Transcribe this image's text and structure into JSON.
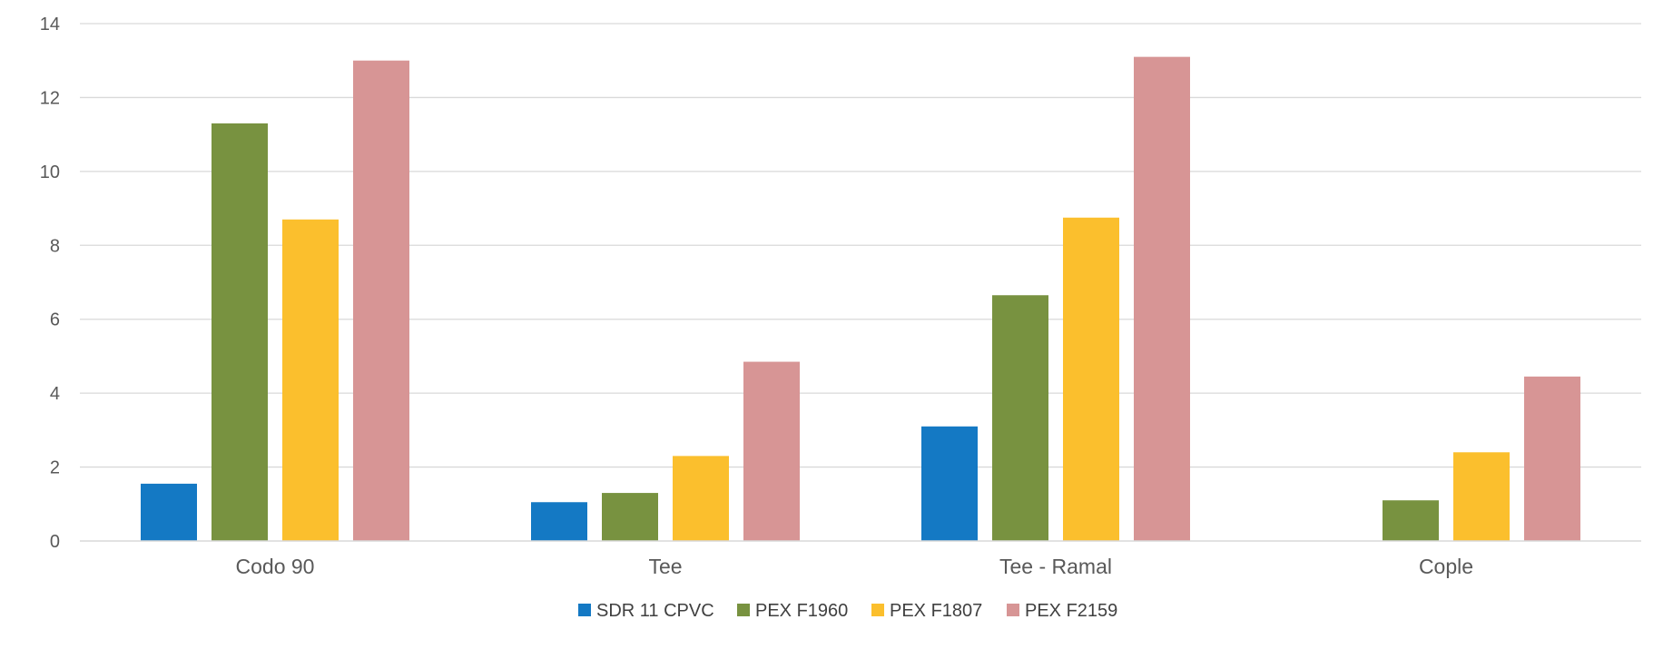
{
  "chart_data": {
    "type": "bar",
    "categories": [
      "Codo 90",
      "Tee",
      "Tee - Ramal",
      "Cople"
    ],
    "series": [
      {
        "name": "SDR 11 CPVC",
        "color": "#1479C4",
        "values": [
          1.55,
          1.05,
          3.1,
          null
        ]
      },
      {
        "name": "PEX F1960",
        "color": "#789240",
        "values": [
          11.3,
          1.3,
          6.65,
          1.1
        ]
      },
      {
        "name": "PEX F1807",
        "color": "#FBBF2D",
        "values": [
          8.7,
          2.3,
          8.75,
          2.4
        ]
      },
      {
        "name": "PEX F2159",
        "color": "#D79595",
        "values": [
          13.0,
          4.85,
          13.1,
          4.45
        ]
      }
    ],
    "title": "",
    "xlabel": "",
    "ylabel": "",
    "ylim": [
      0,
      14
    ],
    "yticks": [
      "0",
      "2",
      "4",
      "6",
      "8",
      "10",
      "12",
      "14"
    ],
    "grid": true,
    "legend": "bottom"
  }
}
